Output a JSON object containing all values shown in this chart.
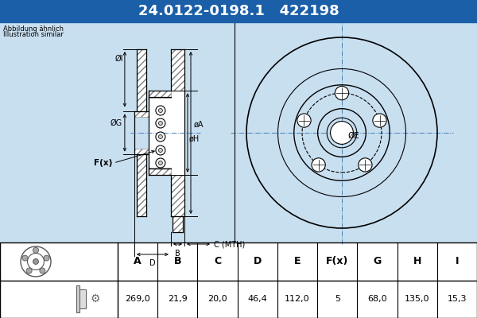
{
  "title_part1": "24.0122-0198.1",
  "title_part2": "422198",
  "header_bg": "#1a5fa8",
  "header_text_color": "#ffffff",
  "bg_color": "#c8dff0",
  "table_bg": "#ffffff",
  "note_line1": "Abbildung ähnlich",
  "note_line2": "Illustration similar",
  "col_headers": [
    "A",
    "B",
    "C",
    "D",
    "E",
    "F(x)",
    "G",
    "H",
    "I"
  ],
  "col_values": [
    "269,0",
    "21,9",
    "20,0",
    "46,4",
    "112,0",
    "5",
    "68,0",
    "135,0",
    "15,3"
  ],
  "lc": "#000000",
  "cc": "#4a7fb5"
}
